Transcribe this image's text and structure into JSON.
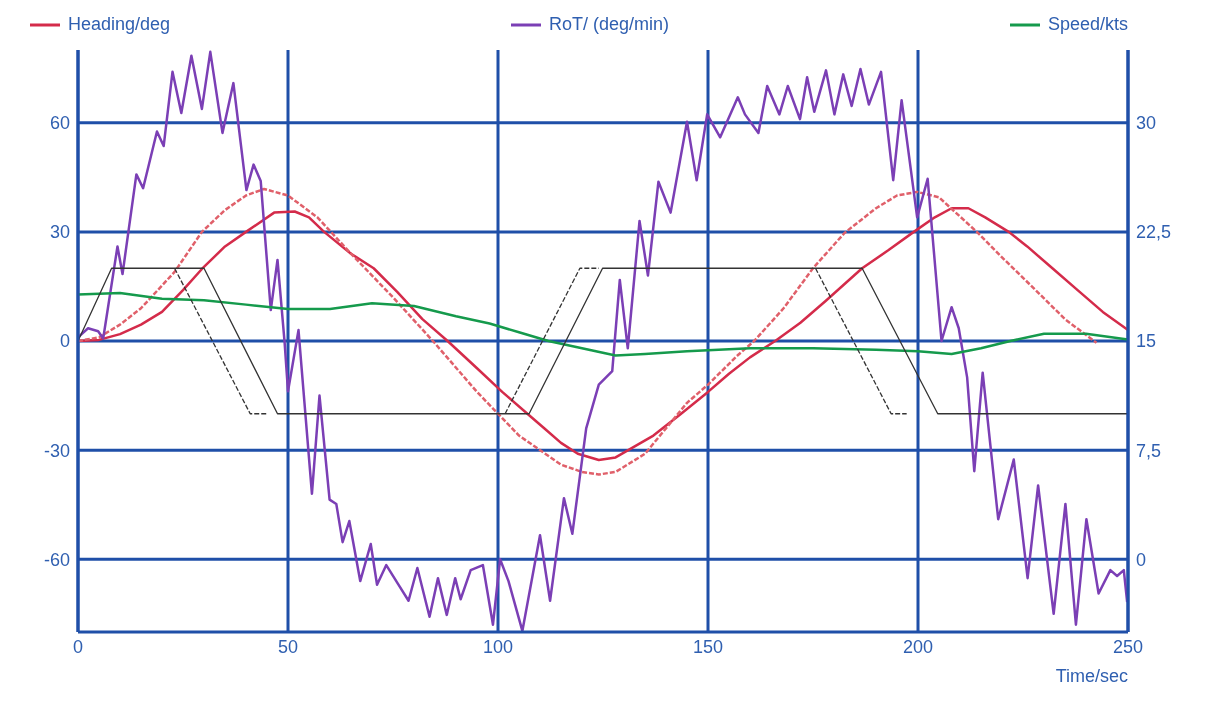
{
  "chart_data": {
    "type": "line",
    "xlabel": "Time/sec",
    "xlim": [
      0,
      250
    ],
    "xticks": [
      0,
      50,
      100,
      150,
      200,
      250
    ],
    "ylim": [
      -80,
      80
    ],
    "yticks": [
      -60,
      -30,
      0,
      30,
      60
    ],
    "y2lim": [
      -5,
      35
    ],
    "y2ticks": [
      0,
      {
        "value": 7.5,
        "label": "7,5"
      },
      15,
      {
        "value": 22.5,
        "label": "22,5"
      },
      30
    ],
    "grid": true,
    "legend": "top",
    "marker": "none",
    "line_style": "solid",
    "series": [
      {
        "name": "Heading/deg",
        "color": "#d42b4a",
        "x": [
          0,
          5,
          10,
          15,
          20,
          25,
          29.5,
          35,
          40,
          46.7,
          51.6,
          55,
          58.6,
          65,
          70.4,
          76,
          82,
          88,
          95,
          101,
          107,
          111,
          115,
          119,
          124,
          128,
          131,
          137,
          143.6,
          150,
          155,
          160,
          166,
          172,
          178,
          186.7,
          193,
          199,
          204,
          208,
          212,
          216,
          221.6,
          226,
          232,
          238,
          244,
          250
        ],
        "values": [
          0,
          0.3,
          1.9,
          4.5,
          8,
          14,
          19.8,
          26,
          30,
          35.3,
          35.6,
          34,
          30,
          24,
          20,
          13.5,
          6,
          0,
          -7.5,
          -14,
          -20,
          -24,
          -28,
          -31,
          -32.7,
          -32,
          -30,
          -26,
          -20,
          -14,
          -9,
          -4.5,
          0,
          5,
          11,
          20,
          25,
          30,
          34,
          36.5,
          36.5,
          34,
          30,
          26,
          20,
          14,
          8,
          3
        ]
      },
      {
        "color": "#e0606a",
        "line_style": "dashed",
        "x": [
          0,
          5,
          10,
          15,
          23,
          29.5,
          35,
          40,
          44.3,
          50,
          57,
          65,
          75,
          84.5,
          95,
          105,
          115,
          120,
          124,
          128,
          135,
          145,
          150,
          157,
          161,
          168,
          175,
          182.5,
          190,
          195,
          199.8,
          205,
          214,
          220,
          228,
          235,
          242.5
        ],
        "values": [
          0,
          1,
          4.5,
          9,
          19,
          30,
          36,
          40,
          41.8,
          40,
          34,
          24,
          12,
          0,
          -14,
          -26,
          -34,
          -36,
          -36.7,
          -36,
          -31,
          -17,
          -12,
          -4,
          0,
          9,
          20,
          29.7,
          36.5,
          40,
          41,
          39.5,
          30,
          23,
          14,
          6,
          -0.5
        ]
      },
      {
        "name": "RoT/ (deg/min)",
        "color": "#7b3fb5",
        "x": [
          0,
          2.4,
          4.8,
          6,
          9.4,
          10.6,
          13.9,
          15.5,
          18.8,
          20.4,
          22.5,
          24.6,
          27,
          29.5,
          31.5,
          34.4,
          37,
          40.1,
          41.8,
          43.5,
          45.9,
          47.5,
          49.2,
          50,
          52.5,
          55.7,
          57.5,
          59.9,
          61.5,
          63,
          64.6,
          67.2,
          69.7,
          71.2,
          73.4,
          76.3,
          78.7,
          80.8,
          83.7,
          85.7,
          87.8,
          89.8,
          91.1,
          93.5,
          96.4,
          98.8,
          100.5,
          102.5,
          105.8,
          110,
          112.4,
          115.7,
          117.7,
          121,
          124,
          127.2,
          129,
          130.9,
          133.7,
          135.7,
          138.2,
          141.1,
          145,
          147.3,
          149.8,
          152.9,
          157.1,
          158.8,
          162,
          164.1,
          167,
          169,
          171.9,
          173.6,
          175.3,
          178.1,
          180.1,
          182.2,
          184.2,
          186.3,
          188.3,
          191.2,
          194.1,
          196.1,
          199.8,
          202.3,
          205.6,
          208,
          209.7,
          211.7,
          213.4,
          215.4,
          219.1,
          222.8,
          226.1,
          228.6,
          232.3,
          235.1,
          237.6,
          240.1,
          243,
          245.8,
          247.4,
          249,
          249.8
        ],
        "values": [
          1,
          3.5,
          2.7,
          0.7,
          26,
          18.4,
          45.8,
          42,
          57.6,
          53.6,
          74,
          62.7,
          78.4,
          63.8,
          79.5,
          57.2,
          70.9,
          41.5,
          48.5,
          44,
          8.5,
          22.3,
          -0.5,
          -13.8,
          3,
          -42,
          -15,
          -43.6,
          -44.8,
          -55.3,
          -49.5,
          -66,
          -55.8,
          -67,
          -61.6,
          -67,
          -71.4,
          -62.4,
          -75.8,
          -65.2,
          -75.3,
          -65.2,
          -71,
          -63,
          -61.6,
          -78,
          -60,
          -66,
          -79.7,
          -53.4,
          -71.4,
          -43.2,
          -53,
          -24,
          -12,
          -8.3,
          16.8,
          -2,
          33,
          18,
          43.8,
          35.3,
          60.3,
          44.2,
          62.3,
          56,
          67,
          62.3,
          57.2,
          70.1,
          62.3,
          70.1,
          61,
          72.5,
          63,
          74.4,
          62.3,
          73.3,
          64.6,
          74.8,
          65,
          74,
          44.2,
          66.2,
          34,
          44.6,
          0,
          9.3,
          3.5,
          -10,
          -35.8,
          -8.7,
          -49,
          -32.6,
          -65.2,
          -39.7,
          -75,
          -44.8,
          -78,
          -49,
          -69.4,
          -63,
          -64.6,
          -63,
          -71.8
        ]
      },
      {
        "name": "Speed/kts",
        "color": "#159a4c",
        "axis": "y2",
        "x": [
          0,
          10,
          20,
          30,
          40,
          50,
          60,
          70,
          80,
          90,
          98,
          105,
          112,
          120,
          128,
          135,
          145,
          160,
          175,
          190,
          200,
          208,
          215,
          222,
          230,
          240,
          250
        ],
        "values": [
          18.2,
          18.3,
          17.9,
          17.8,
          17.5,
          17.2,
          17.2,
          17.6,
          17.4,
          16.7,
          16.2,
          15.6,
          15,
          14.5,
          14,
          14.1,
          14.3,
          14.5,
          14.5,
          14.4,
          14.3,
          14.1,
          14.5,
          15,
          15.5,
          15.5,
          15.1
        ]
      },
      {
        "color": "#333333",
        "x": [
          0,
          8,
          30,
          47.5,
          107.4,
          124.9,
          186.7,
          204.7,
          250
        ],
        "values": [
          0,
          20,
          20,
          -20,
          -20,
          20,
          20,
          -20,
          -20
        ]
      },
      {
        "color": "#333333",
        "line_style": "dashed",
        "x": [
          23,
          41,
          45,
          46,
          101.7,
          119.5,
          124,
          125,
          175.6,
          193.6,
          197.3
        ],
        "values": [
          20,
          -20,
          -20,
          null,
          -20,
          20,
          20,
          null,
          20,
          -20,
          -20
        ]
      }
    ]
  }
}
